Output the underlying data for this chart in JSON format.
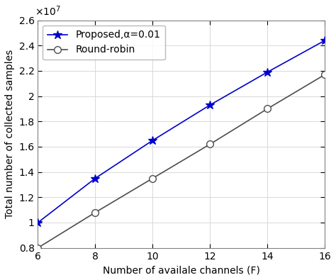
{
  "x": [
    6,
    8,
    10,
    12,
    14,
    16
  ],
  "proposed_y": [
    10000000.0,
    13500000.0,
    16500000.0,
    19300000.0,
    21900000.0,
    24400000.0
  ],
  "roundrobin_y": [
    8000000.0,
    10800000.0,
    13500000.0,
    16200000.0,
    19000000.0,
    21700000.0
  ],
  "proposed_label": "Proposed,α=0.01",
  "roundrobin_label": "Round-robin",
  "proposed_color": "#0000cd",
  "roundrobin_color": "#4d4d4d",
  "xlabel": "Number of availale channels (F)",
  "ylabel": "Total number of collected samples",
  "xlim": [
    6,
    16
  ],
  "ylim": [
    8000000.0,
    26000000.0
  ],
  "xticks": [
    6,
    8,
    10,
    12,
    14,
    16
  ],
  "yticks": [
    8000000.0,
    10000000.0,
    12000000.0,
    14000000.0,
    16000000.0,
    18000000.0,
    20000000.0,
    22000000.0,
    24000000.0,
    26000000.0
  ],
  "ytick_labels": [
    "0.8",
    "1",
    "1.2",
    "1.4",
    "1.6",
    "1.8",
    "2",
    "2.2",
    "2.4",
    "2.6"
  ],
  "grid_color": "#d3d3d3",
  "background_color": "#ffffff",
  "legend_loc": "upper left",
  "linewidth": 1.2,
  "markersize_star": 9,
  "markersize_circle": 7,
  "spine_color": "#808080",
  "tick_color": "#808080",
  "label_fontsize": 10,
  "tick_fontsize": 10,
  "legend_fontsize": 10
}
